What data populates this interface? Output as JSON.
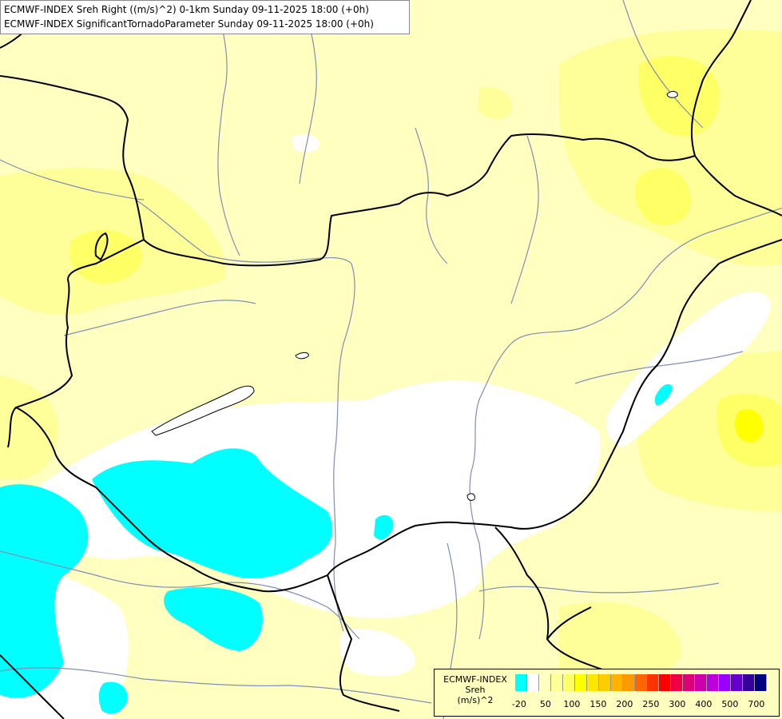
{
  "title": {
    "line1": "ECMWF-INDEX Sreh Right ((m/s)^2) 0-1km Sunday 09-11-2025 18:00 (+0h)",
    "line2": "ECMWF-INDEX SignificantTornadoParameter Sunday 09-11-2025 18:00 (+0h)"
  },
  "legend": {
    "title_line1": "ECMWF-INDEX",
    "title_line2": "Sreh",
    "title_line3": "(m/s)^2",
    "colors": [
      "#00ffff",
      "#ffffff",
      "#ffffc0",
      "#ffff99",
      "#ffff66",
      "#ffff00",
      "#ffe600",
      "#ffcc00",
      "#ffb300",
      "#ff9900",
      "#ff6600",
      "#ff3300",
      "#ff0000",
      "#ee0044",
      "#dd0077",
      "#cc00aa",
      "#bb00dd",
      "#9900ff",
      "#6600cc",
      "#330099",
      "#000080"
    ],
    "tick_labels": [
      "-20",
      "50",
      "100",
      "150",
      "200",
      "250",
      "300",
      "400",
      "500",
      "700"
    ]
  },
  "map": {
    "fill_colors": {
      "background": "#ffffc0",
      "cyan": "#00ffff",
      "white": "#ffffff",
      "yellow_mid": "#ffff99",
      "yellow_strong": "#ffff66",
      "yellow_peak": "#ffff00"
    },
    "line_colors": {
      "border": "#000000",
      "river": "#7f8fb6"
    }
  }
}
